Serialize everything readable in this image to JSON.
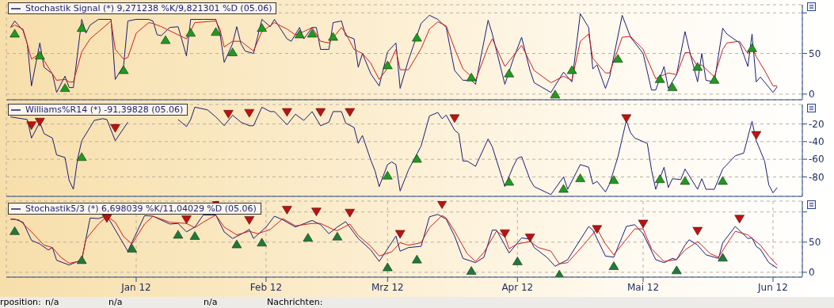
{
  "chart_data": [
    {
      "type": "line",
      "title": "Stochastik Signal (*) 9,271238 %K/9,821301 %D (05.06)",
      "xlim": [
        "2011-12-01",
        "2012-06-08"
      ],
      "xticks": [
        {
          "value": "2012-01-01",
          "label": null
        },
        {
          "value": "2012-02-01",
          "label": null
        },
        {
          "value": "2012-03-01",
          "label": null
        },
        {
          "value": "2012-04-01",
          "label": null
        },
        {
          "value": "2012-05-01",
          "label": null
        },
        {
          "value": "2012-06-01",
          "label": null
        }
      ],
      "ylim": [
        -7,
        110
      ],
      "yticks": [
        0,
        50,
        {
          "value": 100,
          "label": null
        }
      ],
      "grid": true,
      "tick_labels": "y",
      "series": [
        {
          "color": "#1c1c78",
          "x": [
            "2011-12-02",
            "2011-12-03",
            "2011-12-05",
            "2011-12-06",
            "2011-12-07",
            "2011-12-09",
            "2011-12-10",
            "2011-12-12",
            "2011-12-13",
            "2011-12-15",
            "2011-12-16",
            "2011-12-17",
            "2011-12-19",
            "2011-12-20",
            "2011-12-21",
            "2011-12-23",
            "2011-12-26",
            "2011-12-27",
            "2011-12-29",
            "2011-12-30",
            "2012-01-01",
            "2012-01-04",
            "2012-01-05",
            "2012-01-06",
            "2012-01-07",
            "2012-01-09",
            "2012-01-11",
            "2012-01-13",
            "2012-01-14",
            "2012-01-17",
            "2012-01-20",
            "2012-01-21",
            "2012-01-22",
            "2012-01-24",
            "2012-01-25",
            "2012-01-26",
            "2012-01-27",
            "2012-01-29",
            "2012-01-31",
            "2012-02-02",
            "2012-02-03",
            "2012-02-06",
            "2012-02-07",
            "2012-02-09",
            "2012-02-10",
            "2012-02-12",
            "2012-02-13",
            "2012-02-14",
            "2012-02-16",
            "2012-02-17",
            "2012-02-19",
            "2012-02-20",
            "2012-02-22",
            "2012-02-23",
            "2012-02-24",
            "2012-02-26",
            "2012-02-28",
            "2012-03-01",
            "2012-03-03",
            "2012-03-04",
            "2012-03-06",
            "2012-03-09",
            "2012-03-11",
            "2012-03-13",
            "2012-03-15",
            "2012-03-17",
            "2012-03-19",
            "2012-03-21",
            "2012-03-22",
            "2012-03-25",
            "2012-03-26",
            "2012-03-29",
            "2012-03-31",
            "2012-04-02",
            "2012-04-04",
            "2012-04-05",
            "2012-04-09",
            "2012-04-12",
            "2012-04-14",
            "2012-04-16",
            "2012-04-18",
            "2012-04-19",
            "2012-04-20",
            "2012-04-22",
            "2012-04-23",
            "2012-04-26",
            "2012-04-28",
            "2012-05-01",
            "2012-05-03",
            "2012-05-04",
            "2012-05-06",
            "2012-05-07",
            "2012-05-09",
            "2012-05-11",
            "2012-05-12",
            "2012-05-14",
            "2012-05-15",
            "2012-05-16",
            "2012-05-18",
            "2012-05-20",
            "2012-05-21",
            "2012-05-24",
            "2012-05-26",
            "2012-05-27",
            "2012-05-28",
            "2012-05-29",
            "2012-06-01",
            "2012-06-02"
          ],
          "values": [
            82,
            90,
            78,
            62,
            10,
            63,
            33,
            25,
            2,
            22,
            8,
            8,
            92,
            75,
            85,
            92,
            92,
            18,
            35,
            90,
            92,
            92,
            90,
            73,
            72,
            82,
            83,
            47,
            92,
            92,
            92,
            75,
            39,
            62,
            83,
            62,
            53,
            50,
            92,
            83,
            92,
            68,
            65,
            82,
            68,
            82,
            82,
            55,
            55,
            88,
            90,
            72,
            68,
            33,
            50,
            25,
            10,
            52,
            63,
            7,
            42,
            87,
            97,
            92,
            82,
            29,
            17,
            17,
            12,
            91,
            74,
            12,
            43,
            70,
            29,
            14,
            2,
            27,
            15,
            99,
            82,
            31,
            36,
            7,
            21,
            97,
            70,
            50,
            5,
            5,
            34,
            7,
            24,
            77,
            55,
            15,
            50,
            17,
            15,
            81,
            74,
            63,
            34,
            74,
            15,
            21,
            2,
            9
          ]
        },
        {
          "color": "#cc2020",
          "x": [
            "2011-12-02",
            "2011-12-03",
            "2011-12-05",
            "2011-12-07",
            "2011-12-09",
            "2011-12-11",
            "2011-12-13",
            "2011-12-15",
            "2011-12-16",
            "2011-12-17",
            "2011-12-19",
            "2011-12-21",
            "2011-12-26",
            "2011-12-27",
            "2011-12-29",
            "2011-12-30",
            "2012-01-01",
            "2012-01-04",
            "2012-01-05",
            "2012-01-07",
            "2012-01-11",
            "2012-01-13",
            "2012-01-15",
            "2012-01-20",
            "2012-01-21",
            "2012-01-22",
            "2012-01-24",
            "2012-01-26",
            "2012-01-29",
            "2012-01-31",
            "2012-02-03",
            "2012-02-06",
            "2012-02-08",
            "2012-02-10",
            "2012-02-12",
            "2012-02-14",
            "2012-02-16",
            "2012-02-19",
            "2012-02-20",
            "2012-02-22",
            "2012-02-24",
            "2012-02-26",
            "2012-02-28",
            "2012-03-01",
            "2012-03-03",
            "2012-03-04",
            "2012-03-06",
            "2012-03-09",
            "2012-03-11",
            "2012-03-13",
            "2012-03-15",
            "2012-03-17",
            "2012-03-19",
            "2012-03-22",
            "2012-03-25",
            "2012-03-26",
            "2012-03-29",
            "2012-04-02",
            "2012-04-05",
            "2012-04-09",
            "2012-04-12",
            "2012-04-14",
            "2012-04-16",
            "2012-04-18",
            "2012-04-19",
            "2012-04-22",
            "2012-04-23",
            "2012-04-26",
            "2012-04-28",
            "2012-05-01",
            "2012-05-03",
            "2012-05-04",
            "2012-05-07",
            "2012-05-09",
            "2012-05-11",
            "2012-05-12",
            "2012-05-14",
            "2012-05-15",
            "2012-05-18",
            "2012-05-20",
            "2012-05-21",
            "2012-05-24",
            "2012-05-26",
            "2012-05-27",
            "2012-05-28",
            "2012-05-30",
            "2012-06-01",
            "2012-06-02"
          ],
          "values": [
            82,
            85,
            80,
            43,
            50,
            33,
            17,
            18,
            15,
            15,
            52,
            68,
            90,
            55,
            43,
            45,
            75,
            88,
            87,
            83,
            73,
            68,
            88,
            90,
            80,
            58,
            65,
            65,
            53,
            77,
            88,
            80,
            73,
            77,
            82,
            65,
            63,
            82,
            75,
            55,
            50,
            38,
            18,
            32,
            55,
            30,
            30,
            56,
            80,
            89,
            84,
            56,
            31,
            17,
            58,
            68,
            34,
            60,
            29,
            14,
            22,
            17,
            65,
            74,
            44,
            26,
            26,
            70,
            71,
            55,
            31,
            19,
            26,
            24,
            51,
            51,
            34,
            36,
            21,
            55,
            63,
            65,
            50,
            58,
            46,
            29,
            10,
            10
          ]
        },
        {
          "type": "scatter",
          "marker": "triangle",
          "color": "#1f9a1f",
          "x": [
            "2011-12-03",
            "2011-12-09",
            "2011-12-15",
            "2011-12-19",
            "2011-12-29",
            "2012-01-08",
            "2012-01-14",
            "2012-01-20",
            "2012-01-24",
            "2012-01-31",
            "2012-02-09",
            "2012-02-12",
            "2012-02-17",
            "2012-03-01",
            "2012-03-08",
            "2012-03-21",
            "2012-03-30",
            "2012-04-10",
            "2012-04-14",
            "2012-04-25",
            "2012-05-05",
            "2012-05-08",
            "2012-05-14",
            "2012-05-18",
            "2012-05-27"
          ],
          "values": [
            75,
            48,
            8,
            82,
            30,
            67,
            76,
            77,
            52,
            82,
            74,
            75,
            71,
            36,
            70,
            21,
            26,
            0,
            30,
            44,
            19,
            9,
            34,
            18,
            57
          ]
        }
      ]
    },
    {
      "type": "line",
      "title": "Williams%R14 (*) -91,39828 (05.06)",
      "xlim": [
        "2011-12-01",
        "2012-06-08"
      ],
      "xticks": [
        {
          "value": "2012-01-01",
          "label": null
        },
        {
          "value": "2012-02-01",
          "label": null
        },
        {
          "value": "2012-03-01",
          "label": null
        },
        {
          "value": "2012-04-01",
          "label": null
        },
        {
          "value": "2012-05-01",
          "label": null
        },
        {
          "value": "2012-06-01",
          "label": null
        }
      ],
      "ylim": [
        -102,
        2
      ],
      "yticks": [
        -20,
        -40,
        -60,
        -80
      ],
      "grid": true,
      "tick_labels": "y",
      "series": [
        {
          "color": "#1c1c78",
          "x": [
            "2011-12-02",
            "2011-12-06",
            "2011-12-07",
            "2011-12-09",
            "2011-12-10",
            "2011-12-12",
            "2011-12-13",
            "2011-12-15",
            "2011-12-16",
            "2011-12-17",
            "2011-12-18",
            "2011-12-19",
            "2011-12-22",
            "2011-12-24",
            "2011-12-25",
            "2011-12-27",
            "2011-12-30",
            "2012-01-05",
            "2012-01-11",
            "2012-01-13",
            "2012-01-14",
            "2012-01-15",
            "2012-01-18",
            "2012-01-20",
            "2012-01-22",
            "2012-01-24",
            "2012-01-26",
            "2012-01-28",
            "2012-01-29",
            "2012-01-31",
            "2012-02-02",
            "2012-02-03",
            "2012-02-06",
            "2012-02-08",
            "2012-02-10",
            "2012-02-12",
            "2012-02-14",
            "2012-02-16",
            "2012-02-17",
            "2012-02-19",
            "2012-02-20",
            "2012-02-22",
            "2012-02-23",
            "2012-02-24",
            "2012-02-26",
            "2012-02-27",
            "2012-02-28",
            "2012-03-01",
            "2012-03-02",
            "2012-03-03",
            "2012-03-04",
            "2012-03-06",
            "2012-03-09",
            "2012-03-11",
            "2012-03-13",
            "2012-03-14",
            "2012-03-15",
            "2012-03-17",
            "2012-03-18",
            "2012-03-19",
            "2012-03-20",
            "2012-03-22",
            "2012-03-25",
            "2012-03-26",
            "2012-03-29",
            "2012-03-31",
            "2012-04-01",
            "2012-04-02",
            "2012-04-04",
            "2012-04-05",
            "2012-04-09",
            "2012-04-12",
            "2012-04-13",
            "2012-04-16",
            "2012-04-18",
            "2012-04-19",
            "2012-04-20",
            "2012-04-22",
            "2012-04-23",
            "2012-04-25",
            "2012-04-27",
            "2012-04-28",
            "2012-04-29",
            "2012-05-02",
            "2012-05-03",
            "2012-05-04",
            "2012-05-06",
            "2012-05-07",
            "2012-05-08",
            "2012-05-10",
            "2012-05-11",
            "2012-05-14",
            "2012-05-15",
            "2012-05-16",
            "2012-05-18",
            "2012-05-20",
            "2012-05-23",
            "2012-05-25",
            "2012-05-27",
            "2012-05-28",
            "2012-05-30",
            "2012-05-31",
            "2012-06-01",
            "2012-06-02"
          ],
          "values": [
            -12,
            -15,
            -36,
            -18,
            -31,
            -36,
            -55,
            -58,
            -84,
            -94,
            -60,
            -39,
            -16,
            -14,
            -15,
            -39,
            -18,
            null,
            -15,
            -23,
            -15,
            -1,
            -4,
            -12,
            -22,
            -10,
            -18,
            -22,
            -22,
            -1,
            -6,
            -6,
            -21,
            -9,
            -16,
            -6,
            -22,
            -18,
            -6,
            -6,
            -19,
            -24,
            -42,
            -33,
            -61,
            -73,
            -91,
            -66,
            -63,
            -66,
            -96,
            -72,
            -45,
            -11,
            -7,
            -14,
            -10,
            -27,
            -31,
            -62,
            -62,
            -68,
            -37,
            -46,
            -91,
            -68,
            -59,
            -57,
            -83,
            -91,
            -100,
            -80,
            -94,
            -66,
            -69,
            -88,
            -85,
            -97,
            -88,
            -57,
            -16,
            -30,
            -36,
            -42,
            -72,
            -94,
            -69,
            -92,
            -82,
            -83,
            -71,
            -94,
            -82,
            -94,
            -94,
            -71,
            -56,
            -53,
            -17,
            -39,
            -62,
            -89,
            -98,
            -92
          ]
        },
        {
          "type": "scatter",
          "marker": "triangle-down",
          "color": "#c01010",
          "x": [
            "2011-12-07",
            "2011-12-09",
            "2011-12-27",
            "2012-01-23",
            "2012-01-28",
            "2012-02-06",
            "2012-02-14",
            "2012-02-21",
            "2012-03-17",
            "2012-04-27",
            "2012-05-28"
          ],
          "values": [
            -22,
            -18,
            -25,
            -9,
            -8,
            -7,
            -7,
            -7,
            -14,
            -14,
            -33
          ]
        },
        {
          "type": "scatter",
          "marker": "triangle",
          "color": "#1f9a1f",
          "x": [
            "2011-12-19",
            "2012-03-01",
            "2012-03-08",
            "2012-03-30",
            "2012-04-12",
            "2012-04-16",
            "2012-04-24",
            "2012-05-05",
            "2012-05-11",
            "2012-05-20"
          ],
          "values": [
            -57,
            -78,
            -59,
            -85,
            -93,
            -81,
            -83,
            -82,
            -84,
            -84
          ]
        }
      ]
    },
    {
      "type": "line",
      "title": "Stochastik5/3 (*) 6,698039 %K/11,04029 %D (05.06)",
      "xlim": [
        "2011-12-01",
        "2012-06-08"
      ],
      "xticks": [
        {
          "value": "2012-01-01",
          "label": "Jan 12"
        },
        {
          "value": "2012-02-01",
          "label": "Feb 12"
        },
        {
          "value": "2012-03-01",
          "label": "Mrz 12"
        },
        {
          "value": "2012-04-01",
          "label": "Apr 12"
        },
        {
          "value": "2012-05-01",
          "label": "Mai 12"
        },
        {
          "value": "2012-06-01",
          "label": "Jun 12"
        }
      ],
      "ylim": [
        -8,
        118
      ],
      "yticks": [
        0,
        50,
        {
          "value": 100,
          "label": null
        }
      ],
      "grid": true,
      "annotations": [
        "rposition:",
        "n/a",
        "n/a",
        "n/a",
        "Nachrichten:"
      ],
      "series": [
        {
          "color": "#1c1c78",
          "x": [
            "2011-12-02",
            "2011-12-03",
            "2011-12-05",
            "2011-12-07",
            "2011-12-09",
            "2011-12-11",
            "2011-12-12",
            "2011-12-13",
            "2011-12-16",
            "2011-12-19",
            "2011-12-21",
            "2011-12-23",
            "2011-12-25",
            "2011-12-30",
            "2012-01-03",
            "2012-01-05",
            "2012-01-09",
            "2012-01-11",
            "2012-01-13",
            "2012-01-15",
            "2012-01-17",
            "2012-01-20",
            "2012-01-22",
            "2012-01-24",
            "2012-01-26",
            "2012-01-28",
            "2012-01-29",
            "2012-02-01",
            "2012-02-03",
            "2012-02-05",
            "2012-02-08",
            "2012-02-12",
            "2012-02-14",
            "2012-02-16",
            "2012-02-18",
            "2012-02-20",
            "2012-02-23",
            "2012-02-26",
            "2012-02-28",
            "2012-03-03",
            "2012-03-04",
            "2012-03-06",
            "2012-03-09",
            "2012-03-11",
            "2012-03-13",
            "2012-03-15",
            "2012-03-17",
            "2012-03-19",
            "2012-03-22",
            "2012-03-24",
            "2012-03-26",
            "2012-03-27",
            "2012-03-29",
            "2012-03-30",
            "2012-04-02",
            "2012-04-04",
            "2012-04-05",
            "2012-04-08",
            "2012-04-10",
            "2012-04-13",
            "2012-04-18",
            "2012-04-19",
            "2012-04-22",
            "2012-04-24",
            "2012-04-27",
            "2012-04-29",
            "2012-05-01",
            "2012-05-04",
            "2012-05-06",
            "2012-05-08",
            "2012-05-09",
            "2012-05-11",
            "2012-05-12",
            "2012-05-14",
            "2012-05-16",
            "2012-05-19",
            "2012-05-20",
            "2012-05-23",
            "2012-05-26",
            "2012-05-27",
            "2012-05-28",
            "2012-05-29",
            "2012-05-31",
            "2012-06-02"
          ],
          "values": [
            88,
            88,
            83,
            53,
            47,
            37,
            41,
            20,
            12,
            21,
            90,
            89,
            94,
            35,
            94,
            93,
            80,
            81,
            67,
            75,
            95,
            95,
            67,
            56,
            63,
            71,
            56,
            75,
            93,
            87,
            75,
            86,
            79,
            64,
            75,
            84,
            56,
            37,
            18,
            60,
            35,
            41,
            43,
            92,
            96,
            88,
            60,
            23,
            16,
            25,
            70,
            70,
            45,
            32,
            57,
            55,
            41,
            25,
            10,
            21,
            76,
            70,
            27,
            25,
            76,
            79,
            64,
            21,
            16,
            23,
            21,
            45,
            54,
            45,
            29,
            23,
            49,
            76,
            56,
            57,
            43,
            38,
            16,
            7
          ]
        },
        {
          "color": "#cc2020",
          "x": [
            "2011-12-02",
            "2011-12-04",
            "2011-12-07",
            "2011-12-10",
            "2011-12-12",
            "2011-12-14",
            "2011-12-16",
            "2011-12-19",
            "2011-12-20",
            "2011-12-23",
            "2011-12-25",
            "2011-12-27",
            "2011-12-29",
            "2011-12-31",
            "2012-01-03",
            "2012-01-05",
            "2012-01-09",
            "2012-01-13",
            "2012-01-15",
            "2012-01-17",
            "2012-01-20",
            "2012-01-22",
            "2012-01-25",
            "2012-01-28",
            "2012-01-30",
            "2012-02-02",
            "2012-02-05",
            "2012-02-08",
            "2012-02-12",
            "2012-02-14",
            "2012-02-17",
            "2012-02-18",
            "2012-02-21",
            "2012-02-23",
            "2012-02-26",
            "2012-02-28",
            "2012-03-02",
            "2012-03-04",
            "2012-03-06",
            "2012-03-09",
            "2012-03-11",
            "2012-03-14",
            "2012-03-15",
            "2012-03-17",
            "2012-03-20",
            "2012-03-22",
            "2012-03-24",
            "2012-03-27",
            "2012-03-29",
            "2012-03-30",
            "2012-04-01",
            "2012-04-04",
            "2012-04-06",
            "2012-04-09",
            "2012-04-11",
            "2012-04-13",
            "2012-04-17",
            "2012-04-20",
            "2012-04-22",
            "2012-04-24",
            "2012-04-27",
            "2012-04-29",
            "2012-05-01",
            "2012-05-03",
            "2012-05-06",
            "2012-05-09",
            "2012-05-11",
            "2012-05-14",
            "2012-05-15",
            "2012-05-17",
            "2012-05-19",
            "2012-05-21",
            "2012-05-23",
            "2012-05-26",
            "2012-05-29",
            "2012-05-31",
            "2012-06-02"
          ],
          "values": [
            88,
            87,
            67,
            45,
            41,
            25,
            15,
            19,
            55,
            80,
            93,
            83,
            59,
            47,
            80,
            93,
            83,
            81,
            74,
            83,
            95,
            75,
            62,
            68,
            64,
            71,
            89,
            77,
            81,
            81,
            71,
            69,
            80,
            61,
            43,
            27,
            34,
            49,
            45,
            49,
            74,
            94,
            90,
            68,
            31,
            18,
            33,
            68,
            59,
            39,
            47,
            51,
            41,
            35,
            14,
            16,
            47,
            72,
            47,
            29,
            55,
            72,
            72,
            39,
            18,
            21,
            37,
            51,
            45,
            31,
            25,
            47,
            68,
            62,
            45,
            27,
            12
          ]
        },
        {
          "type": "scatter",
          "marker": "triangle-down",
          "color": "#c01010",
          "x": [
            "2011-12-25",
            "2012-01-13",
            "2012-01-20",
            "2012-01-28",
            "2012-02-06",
            "2012-02-13",
            "2012-02-21",
            "2012-03-04",
            "2012-03-14",
            "2012-03-29",
            "2012-04-04",
            "2012-04-20",
            "2012-05-01",
            "2012-05-14",
            "2012-05-24"
          ],
          "values": [
            89,
            87,
            115,
            86,
            103,
            100,
            98,
            63,
            112,
            64,
            57,
            71,
            80,
            68,
            88
          ]
        },
        {
          "type": "scatter",
          "marker": "triangle",
          "color": "#1f7a3a",
          "x": [
            "2011-12-03",
            "2011-12-19",
            "2011-12-31",
            "2012-01-11",
            "2012-01-15",
            "2012-01-25",
            "2012-01-31",
            "2012-02-11",
            "2012-02-18",
            "2012-03-01",
            "2012-03-08",
            "2012-03-21",
            "2012-04-01",
            "2012-04-11",
            "2012-04-24",
            "2012-05-09",
            "2012-05-20"
          ],
          "values": [
            69,
            21,
            40,
            63,
            61,
            47,
            50,
            58,
            60,
            9,
            22,
            3,
            19,
            -3,
            11,
            4,
            25
          ]
        }
      ]
    }
  ]
}
